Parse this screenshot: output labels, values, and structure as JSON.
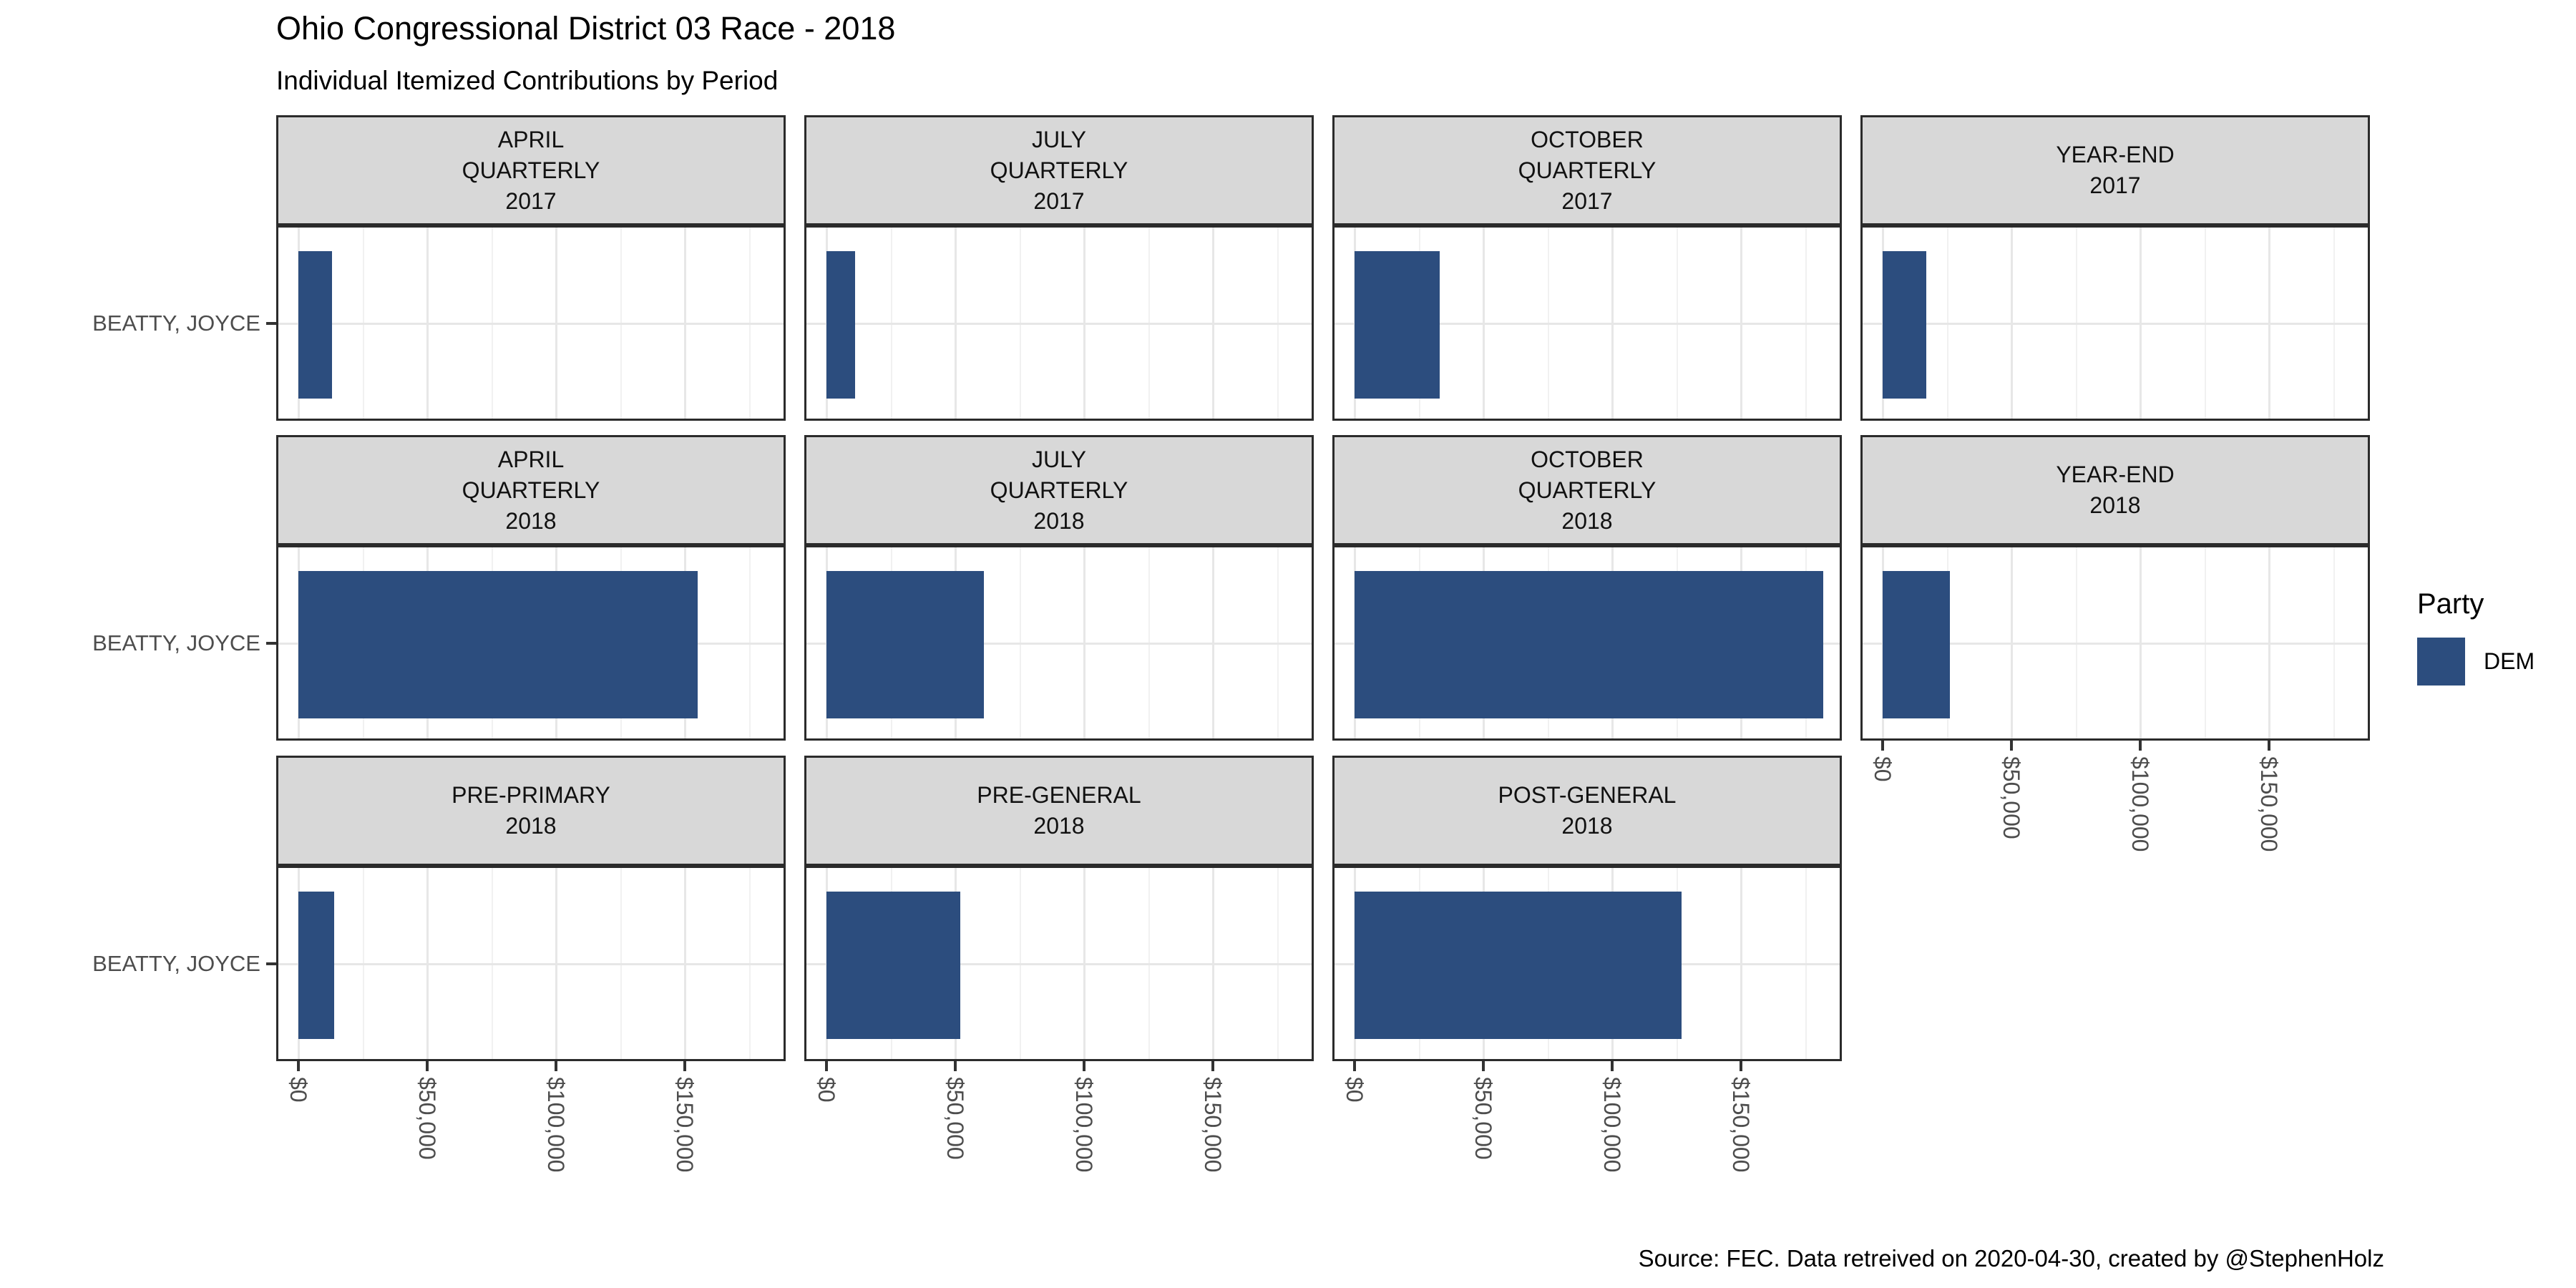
{
  "header": {
    "title": "Ohio Congressional District 03 Race - 2018",
    "subtitle": "Individual Itemized Contributions by Period"
  },
  "caption": "Source: FEC. Data retreived on 2020-04-30, created by @StephenHolz",
  "legend": {
    "title": "Party",
    "entries": [
      {
        "label": "DEM",
        "color": "#2C4D7E"
      }
    ]
  },
  "colors": {
    "bar": "#2C4D7E",
    "strip_bg": "#D8D8D8",
    "panel_border": "#2B2B2B",
    "grid_major": "#E7E7E7",
    "grid_minor": "#F1F1F1",
    "axis_text": "#4D4D4D"
  },
  "chart_data": {
    "type": "bar",
    "orientation": "horizontal",
    "title": "Ohio Congressional District 03 Race - 2018",
    "subtitle": "Individual Itemized Contributions by Period",
    "y_category": "BEATTY, JOYCE",
    "legend_position": "right",
    "grid": "on",
    "x_axis": {
      "tick_labels": [
        "$0",
        "$50,000",
        "$100,000",
        "$150,000"
      ],
      "tick_values": [
        0,
        50000,
        100000,
        150000
      ],
      "range": [
        0,
        190000
      ],
      "minor_step": 25000
    },
    "series": [
      {
        "name": "DEM",
        "color": "#2C4D7E"
      }
    ],
    "facets": [
      {
        "label_lines": [
          "APRIL",
          "QUARTERLY",
          "2017"
        ],
        "row": 0,
        "col": 0,
        "candidate": "BEATTY, JOYCE",
        "party": "DEM",
        "value": 13000,
        "axis_below": false
      },
      {
        "label_lines": [
          "JULY",
          "QUARTERLY",
          "2017"
        ],
        "row": 0,
        "col": 1,
        "candidate": "BEATTY, JOYCE",
        "party": "DEM",
        "value": 11000,
        "axis_below": false
      },
      {
        "label_lines": [
          "OCTOBER",
          "QUARTERLY",
          "2017"
        ],
        "row": 0,
        "col": 2,
        "candidate": "BEATTY, JOYCE",
        "party": "DEM",
        "value": 33000,
        "axis_below": false
      },
      {
        "label_lines": [
          "YEAR-END",
          "2017"
        ],
        "row": 0,
        "col": 3,
        "candidate": "BEATTY, JOYCE",
        "party": "DEM",
        "value": 17000,
        "axis_below": false
      },
      {
        "label_lines": [
          "APRIL",
          "QUARTERLY",
          "2018"
        ],
        "row": 1,
        "col": 0,
        "candidate": "BEATTY, JOYCE",
        "party": "DEM",
        "value": 155000,
        "axis_below": false
      },
      {
        "label_lines": [
          "JULY",
          "QUARTERLY",
          "2018"
        ],
        "row": 1,
        "col": 1,
        "candidate": "BEATTY, JOYCE",
        "party": "DEM",
        "value": 61000,
        "axis_below": false
      },
      {
        "label_lines": [
          "OCTOBER",
          "QUARTERLY",
          "2018"
        ],
        "row": 1,
        "col": 2,
        "candidate": "BEATTY, JOYCE",
        "party": "DEM",
        "value": 182000,
        "axis_below": false
      },
      {
        "label_lines": [
          "YEAR-END",
          "2018"
        ],
        "row": 1,
        "col": 3,
        "candidate": "BEATTY, JOYCE",
        "party": "DEM",
        "value": 26000,
        "axis_below": true
      },
      {
        "label_lines": [
          "PRE-PRIMARY",
          "2018"
        ],
        "row": 2,
        "col": 0,
        "candidate": "BEATTY, JOYCE",
        "party": "DEM",
        "value": 14000,
        "axis_below": true
      },
      {
        "label_lines": [
          "PRE-GENERAL",
          "2018"
        ],
        "row": 2,
        "col": 1,
        "candidate": "BEATTY, JOYCE",
        "party": "DEM",
        "value": 52000,
        "axis_below": true
      },
      {
        "label_lines": [
          "POST-GENERAL",
          "2018"
        ],
        "row": 2,
        "col": 2,
        "candidate": "BEATTY, JOYCE",
        "party": "DEM",
        "value": 127000,
        "axis_below": true
      }
    ]
  }
}
